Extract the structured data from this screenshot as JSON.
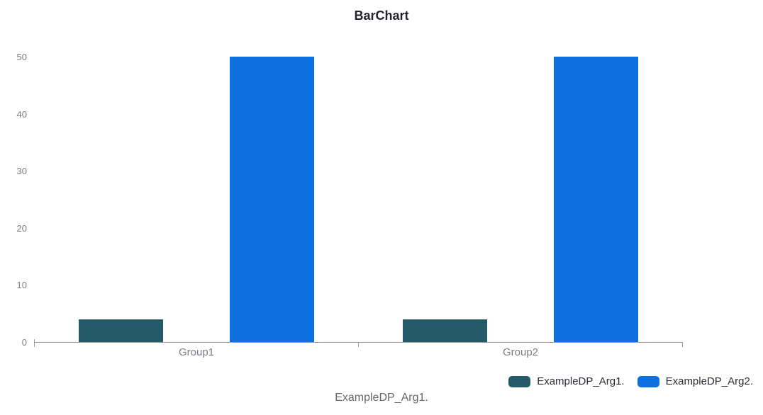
{
  "chart": {
    "title": "BarChart",
    "x_axis_caption": "ExampleDP_Arg1."
  },
  "chart_data": {
    "type": "bar",
    "title": "BarChart",
    "xlabel": "ExampleDP_Arg1.",
    "ylabel": "",
    "categories": [
      "Group1",
      "Group2"
    ],
    "series": [
      {
        "name": "ExampleDP_Arg1.",
        "color": "#245a68",
        "values": [
          4,
          4
        ]
      },
      {
        "name": "ExampleDP_Arg2.",
        "color": "#0c70e1",
        "values": [
          50,
          50
        ]
      }
    ],
    "ylim": [
      0,
      50
    ],
    "yticks": [
      0,
      10,
      20,
      30,
      40,
      50
    ],
    "grid": false,
    "legend_position": "bottom-right"
  },
  "colors": {
    "axis": "#9a9aa0",
    "tick_label": "#7c7c85",
    "title_text": "#23232e",
    "caption_text": "#66666e",
    "legend_text": "#2b2b3a",
    "background": "#ffffff"
  }
}
